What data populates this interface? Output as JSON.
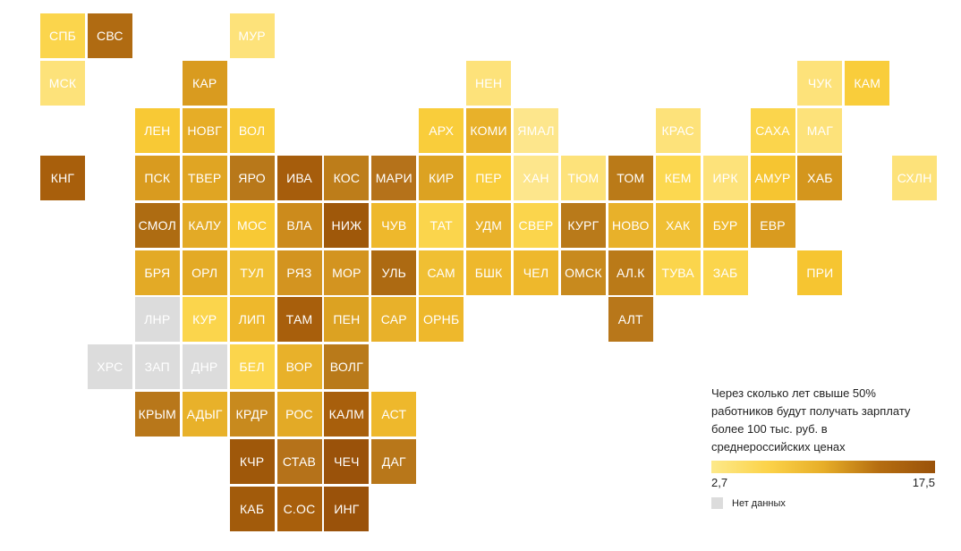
{
  "legend": {
    "title_lines": [
      "Через сколько лет свыше 50%",
      "работников будут получать зарплату",
      "более 100 тыс. руб. в",
      "среднероссийских ценах"
    ],
    "min_label": "2,7",
    "max_label": "17,5",
    "nodata_label": "Нет данных",
    "gradient_colors": [
      "#fde98a",
      "#fcd34a",
      "#e7ae28",
      "#b56d10",
      "#9a520a"
    ],
    "nodata_color": "#dcdcdc"
  },
  "regions": [
    {
      "label": "СПБ",
      "row": 0,
      "col": 0,
      "color": "#fbd54c"
    },
    {
      "label": "СВС",
      "row": 0,
      "col": 1,
      "color": "#b06b12"
    },
    {
      "label": "МУР",
      "row": 0,
      "col": 4,
      "color": "#fde27a"
    },
    {
      "label": "МСК",
      "row": 1,
      "col": 0,
      "color": "#fde27a"
    },
    {
      "label": "КАР",
      "row": 1,
      "col": 3,
      "color": "#d99b1f"
    },
    {
      "label": "НЕН",
      "row": 1,
      "col": 9,
      "color": "#fde27a"
    },
    {
      "label": "ЧУК",
      "row": 1,
      "col": 16,
      "color": "#fde27a"
    },
    {
      "label": "КАМ",
      "row": 1,
      "col": 17,
      "color": "#f9cd3b"
    },
    {
      "label": "ЛЕН",
      "row": 2,
      "col": 2,
      "color": "#f8c935"
    },
    {
      "label": "НОВГ",
      "row": 2,
      "col": 3,
      "color": "#e6ad27"
    },
    {
      "label": "ВОЛ",
      "row": 2,
      "col": 4,
      "color": "#f9cd3b"
    },
    {
      "label": "АРХ",
      "row": 2,
      "col": 8,
      "color": "#f9cd3b"
    },
    {
      "label": "КОМИ",
      "row": 2,
      "col": 9,
      "color": "#e8b12a"
    },
    {
      "label": "ЯМАЛ",
      "row": 2,
      "col": 10,
      "color": "#fde68c"
    },
    {
      "label": "КРАС",
      "row": 2,
      "col": 13,
      "color": "#fde27a"
    },
    {
      "label": "САХА",
      "row": 2,
      "col": 15,
      "color": "#fbd54c"
    },
    {
      "label": "МАГ",
      "row": 2,
      "col": 16,
      "color": "#fde27a"
    },
    {
      "label": "КНГ",
      "row": 3,
      "col": 0,
      "color": "#a85f0c"
    },
    {
      "label": "ПСК",
      "row": 3,
      "col": 2,
      "color": "#d99b1f"
    },
    {
      "label": "ТВЕР",
      "row": 3,
      "col": 3,
      "color": "#e0a523"
    },
    {
      "label": "ЯРО",
      "row": 3,
      "col": 4,
      "color": "#b8781a"
    },
    {
      "label": "ИВА",
      "row": 3,
      "col": 5,
      "color": "#a65d0c"
    },
    {
      "label": "КОС",
      "row": 3,
      "col": 6,
      "color": "#bd7d1a"
    },
    {
      "label": "МАРИ",
      "row": 3,
      "col": 7,
      "color": "#b5721a"
    },
    {
      "label": "КИР",
      "row": 3,
      "col": 8,
      "color": "#dca222"
    },
    {
      "label": "ПЕР",
      "row": 3,
      "col": 9,
      "color": "#f9cd3b"
    },
    {
      "label": "ХАН",
      "row": 3,
      "col": 10,
      "color": "#fde68c"
    },
    {
      "label": "ТЮМ",
      "row": 3,
      "col": 11,
      "color": "#fde27a"
    },
    {
      "label": "ТОМ",
      "row": 3,
      "col": 12,
      "color": "#ba7a18"
    },
    {
      "label": "КЕМ",
      "row": 3,
      "col": 13,
      "color": "#fcd850"
    },
    {
      "label": "ИРК",
      "row": 3,
      "col": 14,
      "color": "#fde27a"
    },
    {
      "label": "АМУР",
      "row": 3,
      "col": 15,
      "color": "#f6c531"
    },
    {
      "label": "ХАБ",
      "row": 3,
      "col": 16,
      "color": "#d4961d"
    },
    {
      "label": "СХЛН",
      "row": 3,
      "col": 18,
      "color": "#fde27a"
    },
    {
      "label": "СМОЛ",
      "row": 4,
      "col": 2,
      "color": "#ae6c12"
    },
    {
      "label": "КАЛУ",
      "row": 4,
      "col": 3,
      "color": "#e3aa26"
    },
    {
      "label": "МОС",
      "row": 4,
      "col": 4,
      "color": "#f8c935"
    },
    {
      "label": "ВЛА",
      "row": 4,
      "col": 5,
      "color": "#cc8b1c"
    },
    {
      "label": "НИЖ",
      "row": 4,
      "col": 6,
      "color": "#9f580a"
    },
    {
      "label": "ЧУВ",
      "row": 4,
      "col": 7,
      "color": "#eeb82c"
    },
    {
      "label": "ТАТ",
      "row": 4,
      "col": 8,
      "color": "#fbd54c"
    },
    {
      "label": "УДМ",
      "row": 4,
      "col": 9,
      "color": "#e8b12a"
    },
    {
      "label": "СВЕР",
      "row": 4,
      "col": 10,
      "color": "#fbd54c"
    },
    {
      "label": "КУРГ",
      "row": 4,
      "col": 11,
      "color": "#b97a1a"
    },
    {
      "label": "НОВО",
      "row": 4,
      "col": 12,
      "color": "#e8b12a"
    },
    {
      "label": "ХАК",
      "row": 4,
      "col": 13,
      "color": "#f0bf33"
    },
    {
      "label": "БУР",
      "row": 4,
      "col": 14,
      "color": "#eeb82c"
    },
    {
      "label": "ЕВР",
      "row": 4,
      "col": 15,
      "color": "#d99b1f"
    },
    {
      "label": "БРЯ",
      "row": 5,
      "col": 2,
      "color": "#e3aa26"
    },
    {
      "label": "ОРЛ",
      "row": 5,
      "col": 3,
      "color": "#e3aa26"
    },
    {
      "label": "ТУЛ",
      "row": 5,
      "col": 4,
      "color": "#f0bf33"
    },
    {
      "label": "РЯЗ",
      "row": 5,
      "col": 5,
      "color": "#d39420"
    },
    {
      "label": "МОР",
      "row": 5,
      "col": 6,
      "color": "#d39420"
    },
    {
      "label": "УЛЬ",
      "row": 5,
      "col": 7,
      "color": "#ad6a12"
    },
    {
      "label": "САМ",
      "row": 5,
      "col": 8,
      "color": "#f0bf33"
    },
    {
      "label": "БШК",
      "row": 5,
      "col": 9,
      "color": "#eeb82c"
    },
    {
      "label": "ЧЕЛ",
      "row": 5,
      "col": 10,
      "color": "#eeb82c"
    },
    {
      "label": "ОМСК",
      "row": 5,
      "col": 11,
      "color": "#c88a1e"
    },
    {
      "label": "АЛ.К",
      "row": 5,
      "col": 12,
      "color": "#ba7a18"
    },
    {
      "label": "ТУВА",
      "row": 5,
      "col": 13,
      "color": "#fbd54c"
    },
    {
      "label": "ЗАБ",
      "row": 5,
      "col": 14,
      "color": "#fbd54c"
    },
    {
      "label": "ПРИ",
      "row": 5,
      "col": 16,
      "color": "#f6c531"
    },
    {
      "label": "ЛНР",
      "row": 6,
      "col": 2,
      "color": "#dcdcdc"
    },
    {
      "label": "КУР",
      "row": 6,
      "col": 3,
      "color": "#fbd54c"
    },
    {
      "label": "ЛИП",
      "row": 6,
      "col": 4,
      "color": "#eeb82c"
    },
    {
      "label": "ТАМ",
      "row": 6,
      "col": 5,
      "color": "#a85f0c"
    },
    {
      "label": "ПЕН",
      "row": 6,
      "col": 6,
      "color": "#dca222"
    },
    {
      "label": "САР",
      "row": 6,
      "col": 7,
      "color": "#e8b12a"
    },
    {
      "label": "ОРНБ",
      "row": 6,
      "col": 8,
      "color": "#eeb82c"
    },
    {
      "label": "АЛТ",
      "row": 6,
      "col": 12,
      "color": "#b8771a"
    },
    {
      "label": "ХРС",
      "row": 7,
      "col": 1,
      "color": "#dcdcdc"
    },
    {
      "label": "ЗАП",
      "row": 7,
      "col": 2,
      "color": "#dcdcdc"
    },
    {
      "label": "ДНР",
      "row": 7,
      "col": 3,
      "color": "#dcdcdc"
    },
    {
      "label": "БЕЛ",
      "row": 7,
      "col": 4,
      "color": "#fbd54c"
    },
    {
      "label": "ВОР",
      "row": 7,
      "col": 5,
      "color": "#e8b12a"
    },
    {
      "label": "ВОЛГ",
      "row": 7,
      "col": 6,
      "color": "#b97a1a"
    },
    {
      "label": "КРЫМ",
      "row": 8,
      "col": 2,
      "color": "#b8771a"
    },
    {
      "label": "АДЫГ",
      "row": 8,
      "col": 3,
      "color": "#e8b12a"
    },
    {
      "label": "КРДР",
      "row": 8,
      "col": 4,
      "color": "#c88a1e"
    },
    {
      "label": "РОС",
      "row": 8,
      "col": 5,
      "color": "#e3aa26"
    },
    {
      "label": "КАЛМ",
      "row": 8,
      "col": 6,
      "color": "#a85f0c"
    },
    {
      "label": "АСТ",
      "row": 8,
      "col": 7,
      "color": "#eeb82c"
    },
    {
      "label": "КЧР",
      "row": 9,
      "col": 4,
      "color": "#9f580a"
    },
    {
      "label": "СТАВ",
      "row": 9,
      "col": 5,
      "color": "#b5721a"
    },
    {
      "label": "ЧЕЧ",
      "row": 9,
      "col": 6,
      "color": "#9a520a"
    },
    {
      "label": "ДАГ",
      "row": 9,
      "col": 7,
      "color": "#b8771a"
    },
    {
      "label": "КАБ",
      "row": 10,
      "col": 4,
      "color": "#a25b0b"
    },
    {
      "label": "С.ОС",
      "row": 10,
      "col": 5,
      "color": "#a85f0c"
    },
    {
      "label": "ИНГ",
      "row": 10,
      "col": 6,
      "color": "#9a520a"
    }
  ]
}
